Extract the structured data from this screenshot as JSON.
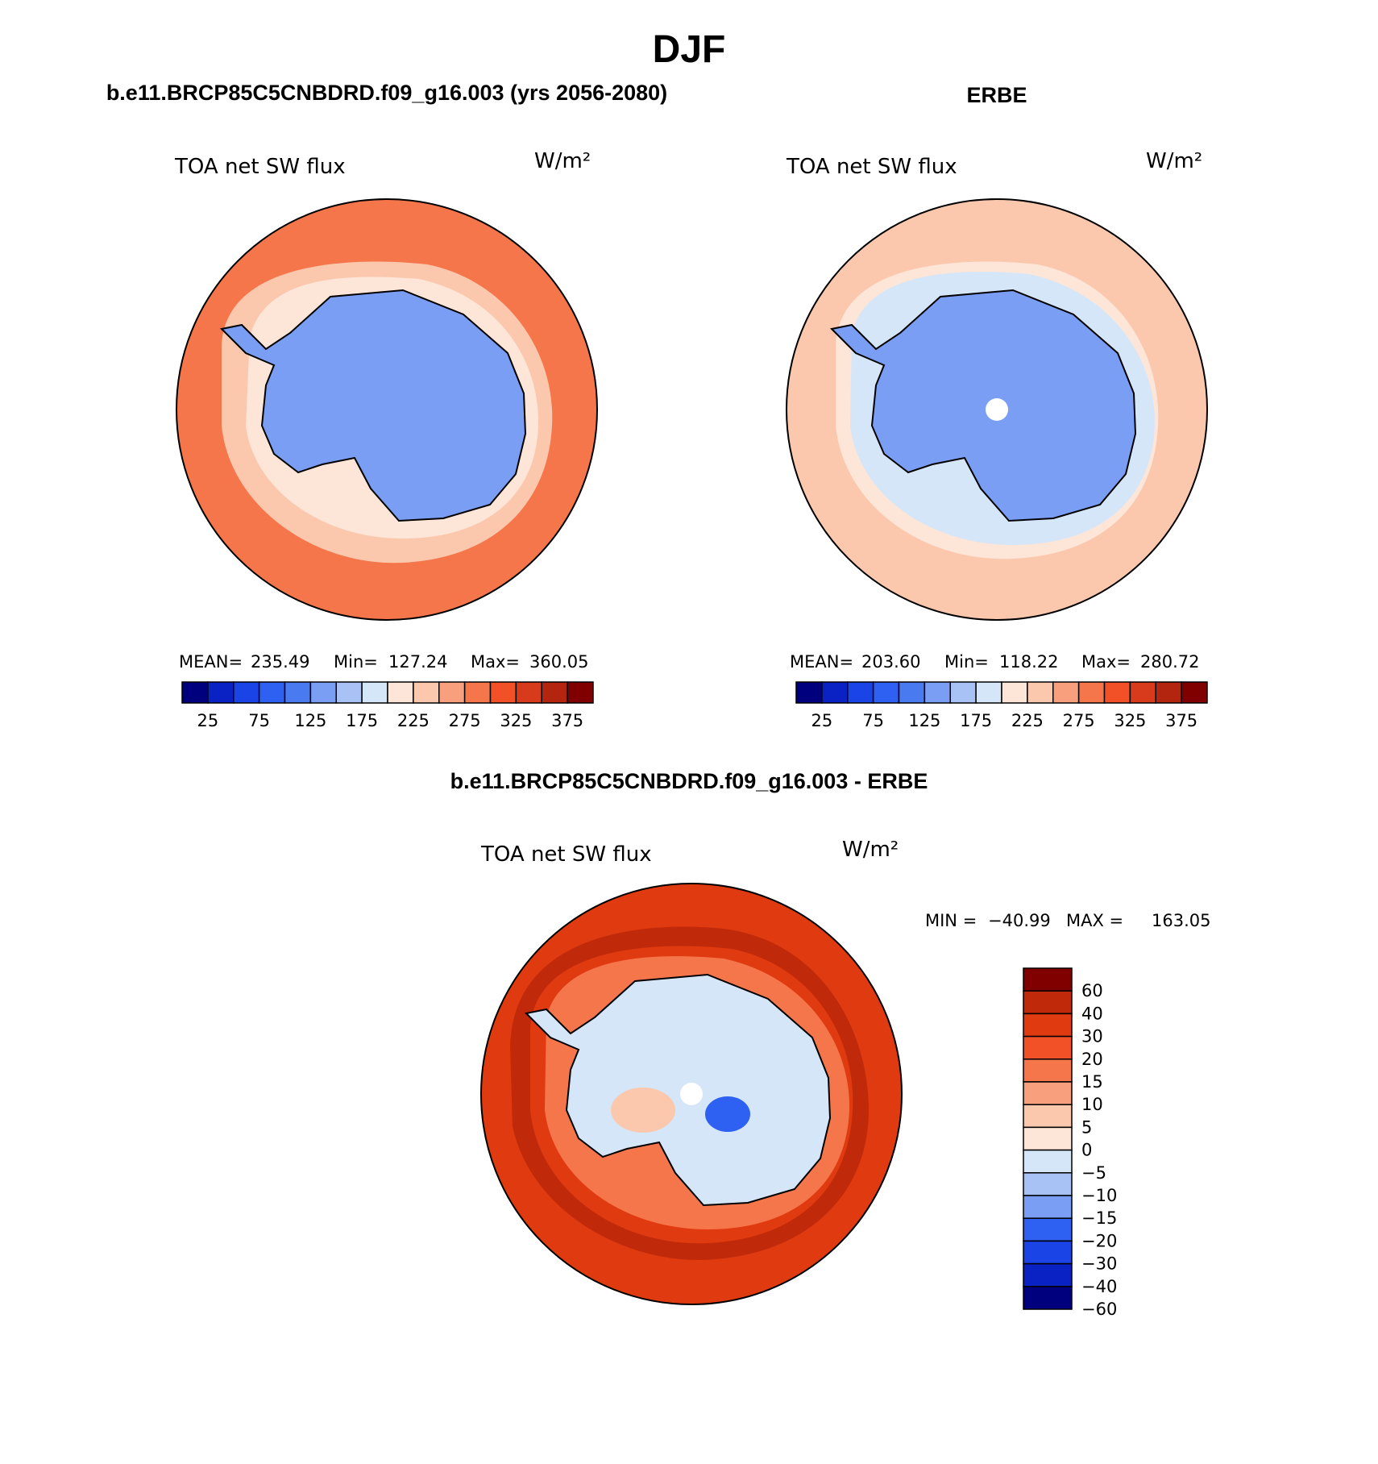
{
  "figure": {
    "title": "DJF",
    "bottom_title": "b.e11.BRCP85C5CNBDRD.f09_g16.003 - ERBE"
  },
  "colors": {
    "abs_palette": [
      "#00007f",
      "#0a21c4",
      "#1a44e6",
      "#2e60f2",
      "#4a7af0",
      "#7a9ef3",
      "#a9c2f5",
      "#d4e6f8",
      "#fde5d8",
      "#fbc8ae",
      "#f8a07e",
      "#f6764c",
      "#f25127",
      "#d83a1c",
      "#b42510",
      "#800000"
    ],
    "diff_palette": [
      "#00007f",
      "#0a21c4",
      "#1a44e6",
      "#2e60f2",
      "#7a9ef3",
      "#a9c2f5",
      "#d4e6f8",
      "#fde5d8",
      "#fbc8ae",
      "#f8a07e",
      "#f6764c",
      "#f25127",
      "#e03a10",
      "#c02a0a",
      "#800000"
    ],
    "continent_outline": "#000000"
  },
  "chart_data": [
    {
      "type": "heatmap",
      "projection": "south-polar-stereographic",
      "title": "b.e11.BRCP85C5CNBDRD.f09_g16.003 (yrs 2056-2080)",
      "variable": "TOA net SW flux",
      "units": "W/m²",
      "stats": {
        "mean_label": "MEAN=",
        "mean": "235.49",
        "min_label": "Min=",
        "min": "127.24",
        "max_label": "Max=",
        "max": "360.05"
      },
      "colorbar": {
        "orientation": "horizontal",
        "levels": [
          25,
          50,
          75,
          100,
          125,
          150,
          175,
          200,
          225,
          250,
          275,
          300,
          325,
          350,
          375
        ],
        "tick_labels": [
          "25",
          "75",
          "125",
          "175",
          "225",
          "275",
          "325",
          "375"
        ]
      },
      "zones": {
        "antarctica": 150,
        "coast": 200,
        "sea_ice_ring": 250,
        "ocean": 290,
        "outer_ocean": 300
      }
    },
    {
      "type": "heatmap",
      "projection": "south-polar-stereographic",
      "title": "ERBE",
      "variable": "TOA net SW flux",
      "units": "W/m²",
      "stats": {
        "mean_label": "MEAN=",
        "mean": "203.60",
        "min_label": "Min=",
        "min": "118.22",
        "max_label": "Max=",
        "max": "280.72"
      },
      "colorbar": {
        "orientation": "horizontal",
        "levels": [
          25,
          50,
          75,
          100,
          125,
          150,
          175,
          200,
          225,
          250,
          275,
          300,
          325,
          350,
          375
        ],
        "tick_labels": [
          "25",
          "75",
          "125",
          "175",
          "225",
          "275",
          "325",
          "375"
        ]
      },
      "zones": {
        "antarctica": 140,
        "coast": 175,
        "sea_ice_ring": 210,
        "ocean": 240,
        "outer_ocean": 260
      }
    },
    {
      "type": "heatmap",
      "projection": "south-polar-stereographic",
      "title": "b.e11.BRCP85C5CNBDRD.f09_g16.003 - ERBE",
      "variable": "TOA net SW flux",
      "units": "W/m²",
      "stats": {
        "min_label": "MIN =",
        "min": "−40.99",
        "max_label": "MAX =",
        "max": "163.05"
      },
      "colorbar": {
        "orientation": "vertical",
        "levels": [
          -60,
          -40,
          -30,
          -20,
          -15,
          -10,
          -5,
          0,
          5,
          10,
          15,
          20,
          30,
          40,
          60
        ],
        "tick_labels": [
          "60",
          "40",
          "30",
          "20",
          "15",
          "10",
          "5",
          "0",
          "−5",
          "−10",
          "−15",
          "−20",
          "−30",
          "−40",
          "−60"
        ]
      },
      "zones": {
        "antarctica": -5,
        "coast": 25,
        "sea_ice_ring": 35,
        "ocean": 40,
        "outer_ocean": 35
      }
    }
  ]
}
